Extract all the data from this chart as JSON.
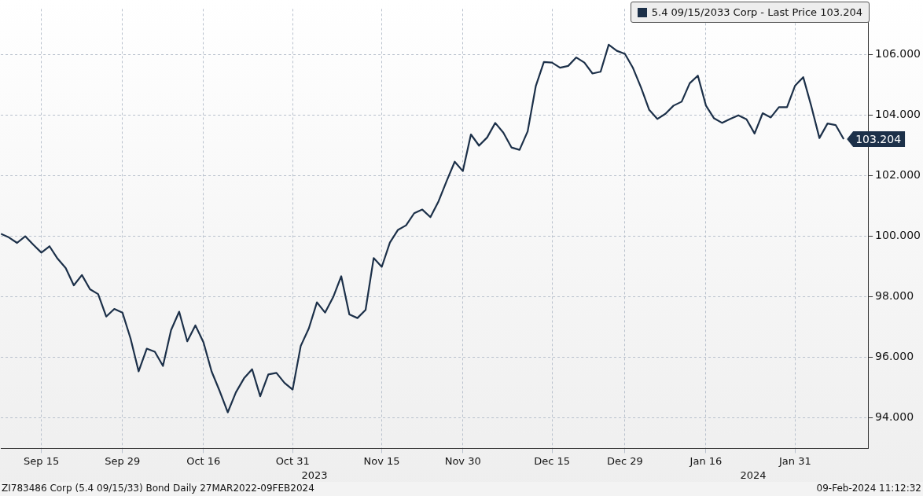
{
  "chart_data": {
    "type": "line",
    "categories": [
      null,
      null,
      null,
      null,
      null,
      "Sep 15",
      null,
      null,
      null,
      null,
      null,
      null,
      null,
      null,
      null,
      "Sep 29",
      null,
      null,
      null,
      null,
      null,
      null,
      null,
      null,
      null,
      "Oct 16",
      null,
      null,
      null,
      null,
      null,
      null,
      null,
      null,
      null,
      null,
      "Oct 31",
      null,
      null,
      null,
      null,
      null,
      null,
      null,
      null,
      null,
      null,
      "Nov 15",
      null,
      null,
      null,
      null,
      null,
      null,
      null,
      null,
      null,
      "Nov 30",
      null,
      null,
      null,
      null,
      null,
      null,
      null,
      null,
      null,
      null,
      "Dec 15",
      null,
      null,
      null,
      null,
      null,
      null,
      null,
      null,
      "Dec 29",
      null,
      null,
      null,
      null,
      null,
      null,
      null,
      null,
      null,
      "Jan 16",
      null,
      null,
      null,
      null,
      null,
      null,
      null,
      null,
      null,
      null,
      "Jan 31",
      null,
      null,
      null,
      null,
      null,
      null
    ],
    "series": [
      {
        "name": "5.4 09/15/2033 Corp - Last Price 103.204",
        "color": "#1c3049",
        "values": [
          100.08,
          99.96,
          99.78,
          100.0,
          99.72,
          99.46,
          99.67,
          99.26,
          98.95,
          98.38,
          98.72,
          98.25,
          98.09,
          97.35,
          97.6,
          97.48,
          96.63,
          95.54,
          96.29,
          96.19,
          95.72,
          96.9,
          97.51,
          96.53,
          97.06,
          96.5,
          95.54,
          94.89,
          94.19,
          94.85,
          95.31,
          95.61,
          94.72,
          95.44,
          95.49,
          95.16,
          94.94,
          96.38,
          96.96,
          97.82,
          97.48,
          97.99,
          98.68,
          97.42,
          97.3,
          97.57,
          99.28,
          98.99,
          99.79,
          100.21,
          100.36,
          100.76,
          100.88,
          100.63,
          101.15,
          101.82,
          102.46,
          102.15,
          103.36,
          102.99,
          103.26,
          103.74,
          103.42,
          102.93,
          102.85,
          103.46,
          104.95,
          105.75,
          105.73,
          105.56,
          105.62,
          105.9,
          105.73,
          105.37,
          105.43,
          106.32,
          106.12,
          106.02,
          105.55,
          104.9,
          104.17,
          103.87,
          104.04,
          104.31,
          104.44,
          105.05,
          105.3,
          104.31,
          103.89,
          103.74,
          103.87,
          103.99,
          103.86,
          103.39,
          104.06,
          103.92,
          104.26,
          104.26,
          104.97,
          105.25,
          104.29,
          103.24,
          103.72,
          103.67,
          103.204
        ],
        "value_labels": [
          null,
          null,
          null,
          null,
          null,
          null,
          null,
          null,
          null,
          null,
          null,
          null,
          null,
          null,
          null,
          null,
          null,
          null,
          null,
          null,
          null,
          null,
          null,
          null,
          null,
          null,
          null,
          null,
          null,
          null,
          null,
          null,
          null,
          null,
          null,
          null,
          null,
          null,
          null,
          null,
          null,
          null,
          null,
          null,
          null,
          null,
          null,
          null,
          null,
          null,
          null,
          null,
          null,
          null,
          null,
          null,
          null,
          null,
          null,
          null,
          null,
          null,
          null,
          null,
          null,
          null,
          null,
          null,
          null,
          null,
          null,
          null,
          null,
          null,
          null,
          null,
          null,
          null,
          null,
          null,
          null,
          null,
          null,
          null,
          null,
          null,
          null,
          null,
          null,
          null,
          null,
          null,
          null,
          null,
          null,
          null,
          null,
          null,
          null,
          null,
          null,
          null,
          null,
          null,
          "103.204"
        ]
      }
    ],
    "ylim": [
      93,
      107.5
    ],
    "yticks": [
      {
        "value": 94,
        "label": "94.000"
      },
      {
        "value": 96,
        "label": "96.000"
      },
      {
        "value": 98,
        "label": "98.000"
      },
      {
        "value": 100,
        "label": "100.000"
      },
      {
        "value": 102,
        "label": "102.000"
      },
      {
        "value": 104,
        "label": "104.000"
      },
      {
        "value": 106,
        "label": "106.000"
      }
    ],
    "grid": true,
    "legend": "top right",
    "line_style": "solid",
    "marker": "none",
    "annotations": [
      "2023",
      "2024",
      "ZI783486 Corp (5.4 09/15/33) Bond  Daily 27MAR2022-09FEB2024",
      "09-Feb-2024 11:12:32"
    ]
  }
}
